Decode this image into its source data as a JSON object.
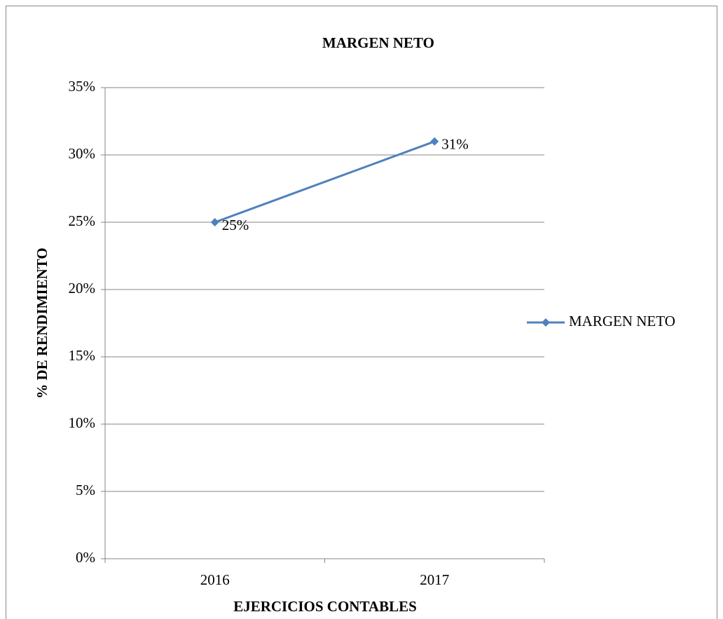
{
  "chart_data": {
    "type": "line",
    "title": "MARGEN NETO",
    "x_label": "EJERCICIOS CONTABLES",
    "y_label": "% DE RENDIMIENTO",
    "categories": [
      "2016",
      "2017"
    ],
    "series": [
      {
        "name": "MARGEN NETO",
        "color": "#4f81bd",
        "values": [
          25,
          31
        ],
        "value_labels": [
          "25%",
          "31%"
        ]
      }
    ],
    "ylim": [
      0,
      35
    ],
    "yticks": [
      {
        "value": 0,
        "label": "0%"
      },
      {
        "value": 5,
        "label": "5%"
      },
      {
        "value": 10,
        "label": "10%"
      },
      {
        "value": 15,
        "label": "15%"
      },
      {
        "value": 20,
        "label": "20%"
      },
      {
        "value": 25,
        "label": "25%"
      },
      {
        "value": 30,
        "label": "30%"
      },
      {
        "value": 35,
        "label": "35%"
      }
    ],
    "grid": true,
    "legend": "right"
  }
}
